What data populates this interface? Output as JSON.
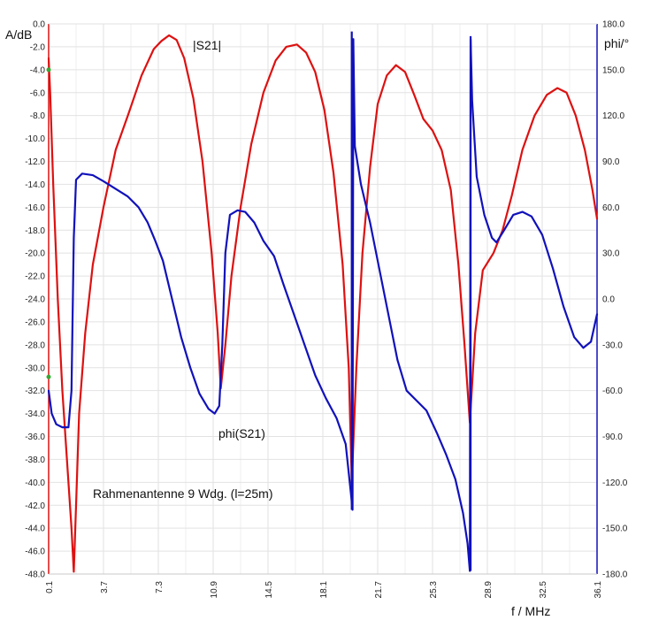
{
  "chart_data": {
    "type": "line",
    "annotation": "Rahmenantenne 9 Wdg. (l=25m)",
    "xlabel": "f / MHz",
    "ylabel_left": "A/dB",
    "ylabel_right": "phi/°",
    "xlim": [
      0.1,
      36.1
    ],
    "ylim_left": [
      -48,
      0
    ],
    "ylim_right": [
      -180,
      180
    ],
    "x_ticks": [
      "0.1",
      "3.7",
      "7.3",
      "10.9",
      "14.5",
      "18.1",
      "21.7",
      "25.3",
      "28.9",
      "32.5",
      "36.1"
    ],
    "y_left_ticks": [
      "0.0",
      "-2.0",
      "-4.0",
      "-6.0",
      "-8.0",
      "-10.0",
      "-12.0",
      "-14.0",
      "-16.0",
      "-18.0",
      "-20.0",
      "-22.0",
      "-24.0",
      "-26.0",
      "-28.0",
      "-30.0",
      "-32.0",
      "-34.0",
      "-36.0",
      "-38.0",
      "-40.0",
      "-42.0",
      "-44.0",
      "-46.0",
      "-48.0"
    ],
    "y_right_ticks": [
      "180.0",
      "150.0",
      "120.0",
      "90.0",
      "60.0",
      "30.0",
      "0.0",
      "-30.0",
      "-60.0",
      "-90.0",
      "-120.0",
      "-150.0",
      "-180.0"
    ],
    "grid": true,
    "colors": {
      "s21": "#dd1111",
      "phi": "#1111bb",
      "marker": "#33aa33"
    },
    "series": [
      {
        "name": "|S21|",
        "axis": "left",
        "points": [
          [
            0.1,
            -3.0
          ],
          [
            0.2,
            -6.0
          ],
          [
            0.4,
            -14.0
          ],
          [
            0.7,
            -24.0
          ],
          [
            1.0,
            -32.0
          ],
          [
            1.3,
            -38.0
          ],
          [
            1.6,
            -44.0
          ],
          [
            1.75,
            -47.8
          ],
          [
            1.9,
            -42.0
          ],
          [
            2.1,
            -34.0
          ],
          [
            2.5,
            -27.0
          ],
          [
            3.0,
            -21.0
          ],
          [
            3.7,
            -16.0
          ],
          [
            4.5,
            -11.0
          ],
          [
            5.3,
            -8.0
          ],
          [
            6.2,
            -4.5
          ],
          [
            7.0,
            -2.2
          ],
          [
            7.5,
            -1.5
          ],
          [
            8.0,
            -1.0
          ],
          [
            8.5,
            -1.4
          ],
          [
            9.0,
            -3.0
          ],
          [
            9.6,
            -6.5
          ],
          [
            10.2,
            -12.0
          ],
          [
            10.8,
            -20.0
          ],
          [
            11.2,
            -27.0
          ],
          [
            11.4,
            -31.8
          ],
          [
            11.7,
            -28.0
          ],
          [
            12.1,
            -22.0
          ],
          [
            12.7,
            -16.0
          ],
          [
            13.4,
            -10.5
          ],
          [
            14.2,
            -6.0
          ],
          [
            15.0,
            -3.2
          ],
          [
            15.7,
            -2.0
          ],
          [
            16.4,
            -1.8
          ],
          [
            17.0,
            -2.5
          ],
          [
            17.6,
            -4.2
          ],
          [
            18.2,
            -7.5
          ],
          [
            18.8,
            -13.0
          ],
          [
            19.4,
            -21.0
          ],
          [
            19.8,
            -30.0
          ],
          [
            20.0,
            -40.0
          ],
          [
            20.3,
            -30.0
          ],
          [
            20.7,
            -20.0
          ],
          [
            21.2,
            -12.5
          ],
          [
            21.7,
            -7.0
          ],
          [
            22.3,
            -4.5
          ],
          [
            22.9,
            -3.6
          ],
          [
            23.5,
            -4.2
          ],
          [
            24.1,
            -6.2
          ],
          [
            24.7,
            -8.3
          ],
          [
            25.3,
            -9.3
          ],
          [
            25.9,
            -11.0
          ],
          [
            26.5,
            -14.5
          ],
          [
            27.0,
            -21.0
          ],
          [
            27.4,
            -28.0
          ],
          [
            27.75,
            -34.8
          ],
          [
            28.1,
            -27.0
          ],
          [
            28.6,
            -21.5
          ],
          [
            29.3,
            -20.0
          ],
          [
            29.9,
            -18.0
          ],
          [
            30.5,
            -15.0
          ],
          [
            31.2,
            -11.0
          ],
          [
            32.0,
            -8.0
          ],
          [
            32.8,
            -6.2
          ],
          [
            33.5,
            -5.6
          ],
          [
            34.1,
            -6.0
          ],
          [
            34.7,
            -8.0
          ],
          [
            35.3,
            -11.0
          ],
          [
            35.8,
            -14.5
          ],
          [
            36.1,
            -17.0
          ]
        ]
      },
      {
        "name": "phi(S21)",
        "axis": "right",
        "points": [
          [
            0.1,
            -60
          ],
          [
            0.3,
            -75
          ],
          [
            0.6,
            -82
          ],
          [
            1.0,
            -84
          ],
          [
            1.4,
            -84
          ],
          [
            1.6,
            -60
          ],
          [
            1.75,
            40
          ],
          [
            1.9,
            78
          ],
          [
            2.3,
            82
          ],
          [
            3.0,
            81
          ],
          [
            3.7,
            77
          ],
          [
            4.5,
            72
          ],
          [
            5.3,
            67
          ],
          [
            6.0,
            60
          ],
          [
            6.6,
            50
          ],
          [
            7.1,
            38
          ],
          [
            7.6,
            25
          ],
          [
            8.2,
            0
          ],
          [
            8.8,
            -25
          ],
          [
            9.4,
            -45
          ],
          [
            10.0,
            -62
          ],
          [
            10.6,
            -72
          ],
          [
            11.0,
            -75
          ],
          [
            11.3,
            -70
          ],
          [
            11.5,
            -30
          ],
          [
            11.7,
            30
          ],
          [
            12.0,
            55
          ],
          [
            12.5,
            58
          ],
          [
            13.0,
            57
          ],
          [
            13.6,
            50
          ],
          [
            14.2,
            38
          ],
          [
            14.9,
            28
          ],
          [
            15.5,
            10
          ],
          [
            16.2,
            -10
          ],
          [
            16.9,
            -30
          ],
          [
            17.6,
            -50
          ],
          [
            18.3,
            -65
          ],
          [
            19.0,
            -78
          ],
          [
            19.6,
            -95
          ],
          [
            19.95,
            -128
          ],
          [
            20.05,
            -138
          ],
          [
            20.1,
            170
          ],
          [
            20.2,
            100
          ],
          [
            20.6,
            75
          ],
          [
            21.2,
            50
          ],
          [
            21.8,
            20
          ],
          [
            22.4,
            -10
          ],
          [
            23.0,
            -40
          ],
          [
            23.6,
            -60
          ],
          [
            24.3,
            -67
          ],
          [
            24.9,
            -73
          ],
          [
            25.6,
            -88
          ],
          [
            26.2,
            -102
          ],
          [
            26.8,
            -118
          ],
          [
            27.3,
            -140
          ],
          [
            27.6,
            -160
          ],
          [
            27.75,
            -178
          ],
          [
            27.8,
            170
          ],
          [
            27.9,
            130
          ],
          [
            28.2,
            80
          ],
          [
            28.7,
            55
          ],
          [
            29.2,
            40
          ],
          [
            29.5,
            37
          ],
          [
            30.0,
            45
          ],
          [
            30.6,
            55
          ],
          [
            31.2,
            57
          ],
          [
            31.8,
            54
          ],
          [
            32.5,
            42
          ],
          [
            33.2,
            20
          ],
          [
            33.9,
            -5
          ],
          [
            34.6,
            -25
          ],
          [
            35.2,
            -32
          ],
          [
            35.7,
            -28
          ],
          [
            36.1,
            -10
          ]
        ]
      }
    ],
    "vertical_spikes": [
      {
        "x": 20.0,
        "y_top": 175,
        "y_bottom": -138
      },
      {
        "x": 27.8,
        "y_top": 172,
        "y_bottom": -178
      }
    ],
    "markers": [
      {
        "x": 0.1,
        "y": -4.0,
        "axis": "left"
      },
      {
        "x": 0.1,
        "y": -30.8,
        "axis": "left"
      }
    ]
  }
}
